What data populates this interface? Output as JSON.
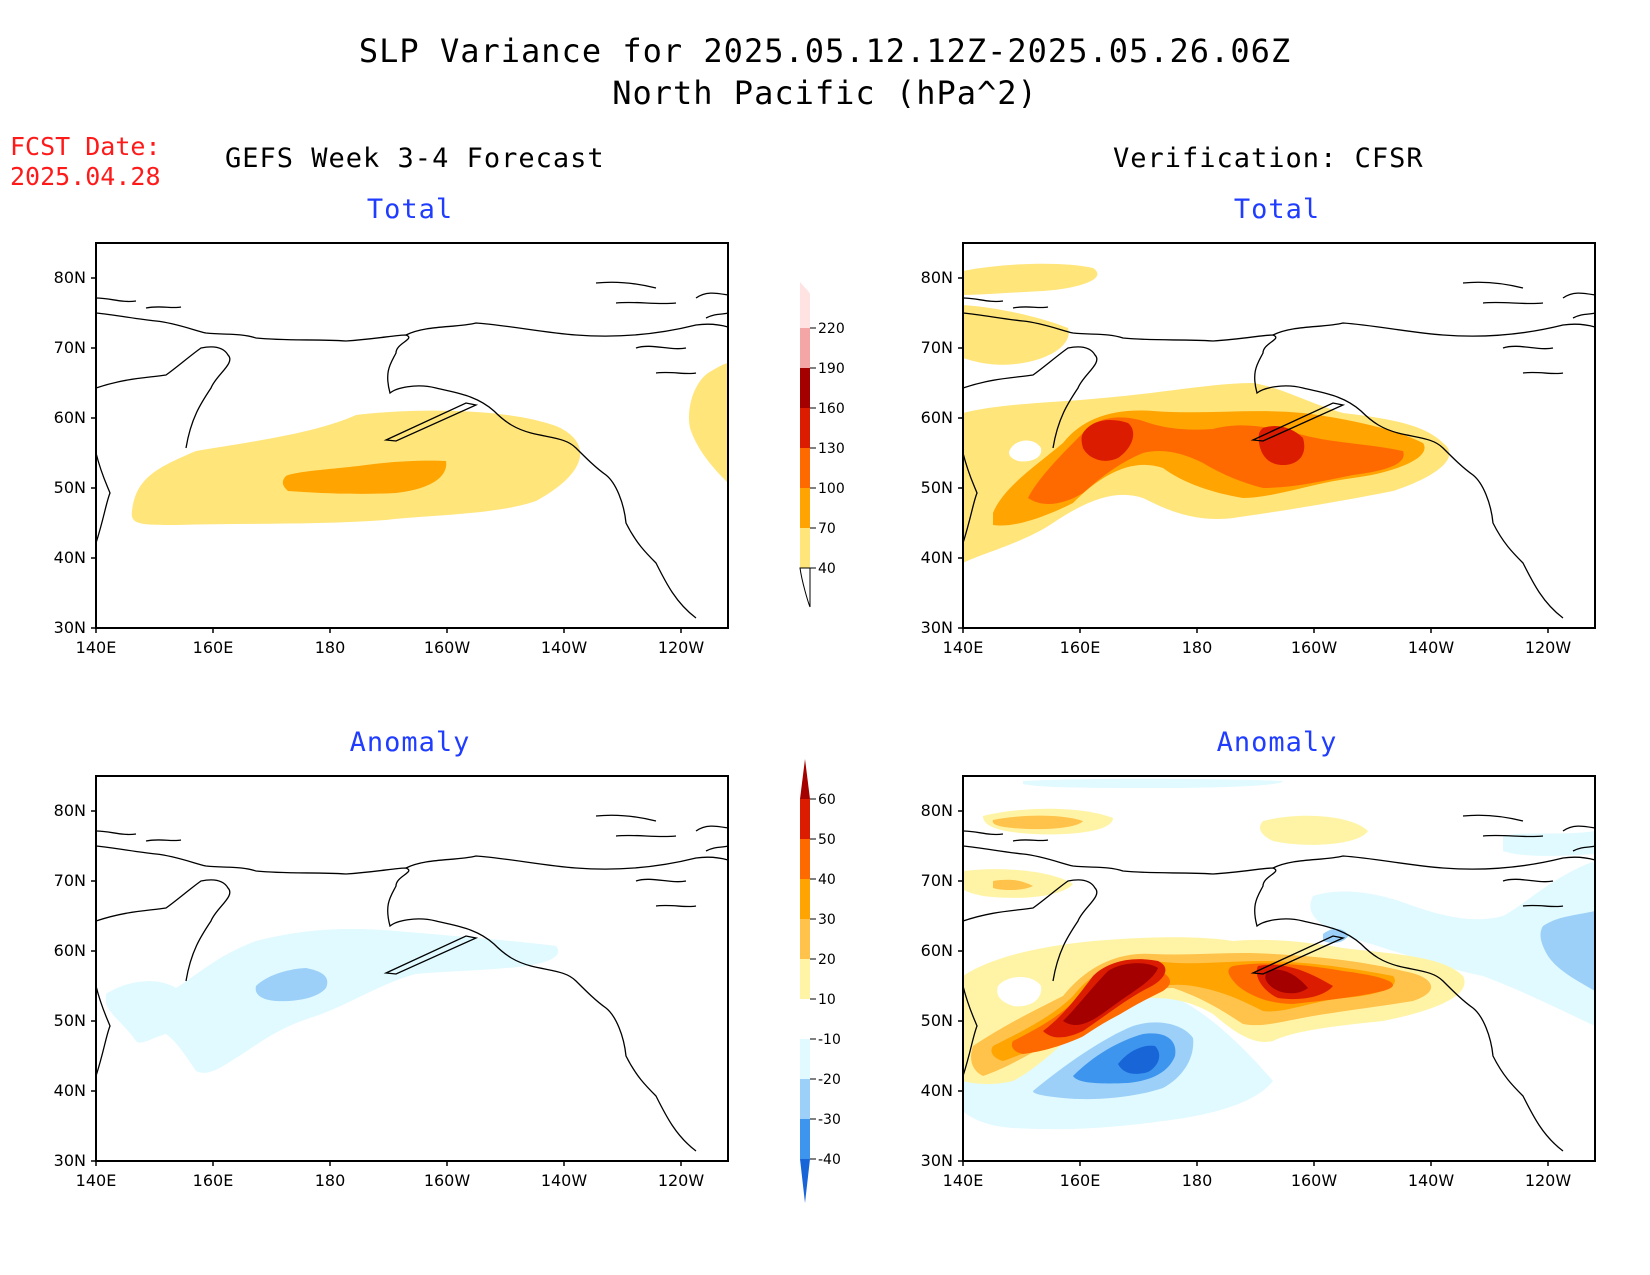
{
  "header": {
    "title_line1": "SLP Variance for 2025.05.12.12Z-2025.05.26.06Z",
    "title_line2": "North Pacific (hPa^2)",
    "fcst_label": "FCST Date:",
    "fcst_date": "2025.04.28",
    "left_column": "GEFS Week 3-4 Forecast",
    "right_column": "Verification: CFSR"
  },
  "panels": {
    "top_left_sub": "Total",
    "top_right_sub": "Total",
    "bottom_left_sub": "Anomaly",
    "bottom_right_sub": "Anomaly"
  },
  "axes": {
    "lat_labels": [
      "80N",
      "70N",
      "60N",
      "50N",
      "40N",
      "30N"
    ],
    "lon_labels": [
      "140E",
      "160E",
      "180",
      "160W",
      "140W",
      "120W"
    ]
  },
  "legend_total": {
    "labels": [
      "220",
      "190",
      "160",
      "130",
      "100",
      "70",
      "40"
    ],
    "colors": [
      "#ffe3e3",
      "#f4a5a5",
      "#a50000",
      "#dc1c00",
      "#ff6a00",
      "#ffa400",
      "#ffe57a"
    ]
  },
  "legend_anomaly": {
    "labels": [
      "60",
      "50",
      "40",
      "30",
      "20",
      "10",
      "-10",
      "-20",
      "-30",
      "-40"
    ],
    "colors": [
      "#a50000",
      "#dc1c00",
      "#ff6a00",
      "#ffa400",
      "#ffc24a",
      "#fff4a6",
      "#ffffff",
      "#e0faff",
      "#9cd0f8",
      "#3d95ee",
      "#1865d8"
    ]
  },
  "colors": {
    "yellow": "#ffe57a",
    "orange": "#ffa400",
    "dark_orange": "#ff6a00",
    "red": "#dc1c00",
    "dark_red": "#a50000",
    "pale_yellow": "#fff4a6",
    "light_orange": "#ffc24a",
    "very_light_blue": "#e0faff",
    "light_blue": "#9cd0f8",
    "blue": "#3d95ee",
    "dark_blue": "#1865d8"
  }
}
